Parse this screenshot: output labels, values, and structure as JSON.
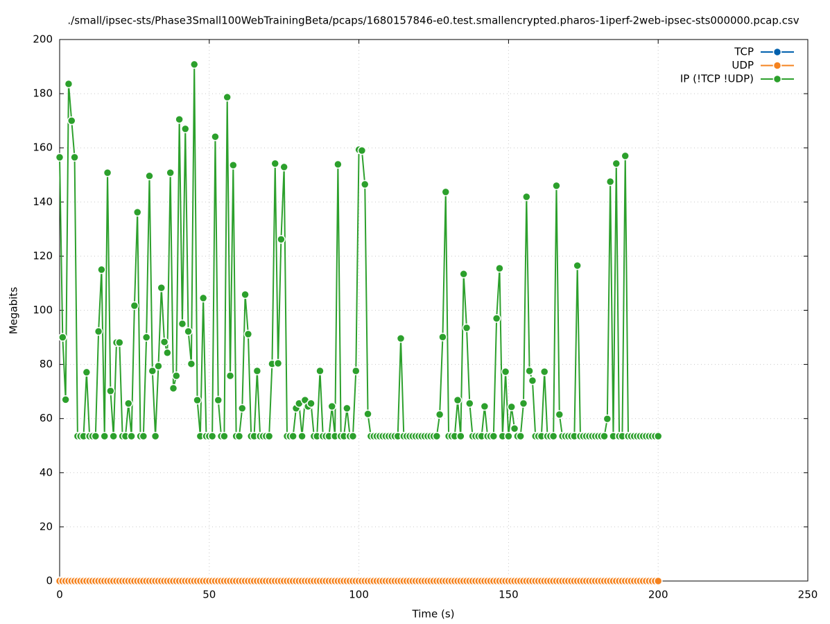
{
  "chart_data": {
    "type": "line",
    "title": "./small/ipsec-sts/Phase3Small100WebTrainingBeta/pcaps/1680157846-e0.test.smallencrypted.pharos-1iperf-2web-ipsec-sts000000.pcap.csv",
    "x_label": "Time (s)",
    "y_label": "Megabits",
    "xlim": [
      0,
      250
    ],
    "xticks": [
      0,
      50,
      100,
      150,
      200,
      250
    ],
    "ylim": [
      0,
      200
    ],
    "yticks": [
      0,
      20,
      40,
      60,
      80,
      100,
      120,
      140,
      160,
      180,
      200
    ],
    "grid": true,
    "legend": "top-right",
    "x": [
      0,
      1,
      2,
      3,
      4,
      5,
      6,
      7,
      8,
      9,
      10,
      11,
      12,
      13,
      14,
      15,
      16,
      17,
      18,
      19,
      20,
      21,
      22,
      23,
      24,
      25,
      26,
      27,
      28,
      29,
      30,
      31,
      32,
      33,
      34,
      35,
      36,
      37,
      38,
      39,
      40,
      41,
      42,
      43,
      44,
      45,
      46,
      47,
      48,
      49,
      50,
      51,
      52,
      53,
      54,
      55,
      56,
      57,
      58,
      59,
      60,
      61,
      62,
      63,
      64,
      65,
      66,
      67,
      68,
      69,
      70,
      71,
      72,
      73,
      74,
      75,
      76,
      77,
      78,
      79,
      80,
      81,
      82,
      83,
      84,
      85,
      86,
      87,
      88,
      89,
      90,
      91,
      92,
      93,
      94,
      95,
      96,
      97,
      98,
      99,
      100,
      101,
      102,
      103,
      104,
      105,
      106,
      107,
      108,
      109,
      110,
      111,
      112,
      113,
      114,
      115,
      116,
      117,
      118,
      119,
      120,
      121,
      122,
      123,
      124,
      125,
      126,
      127,
      128,
      129,
      130,
      131,
      132,
      133,
      134,
      135,
      136,
      137,
      138,
      139,
      140,
      141,
      142,
      143,
      144,
      145,
      146,
      147,
      148,
      149,
      150,
      151,
      152,
      153,
      154,
      155,
      156,
      157,
      158,
      159,
      160,
      161,
      162,
      163,
      164,
      165,
      166,
      167,
      168,
      169,
      170,
      171,
      172,
      173,
      174,
      175,
      176,
      177,
      178,
      179,
      180,
      181,
      182,
      183,
      184,
      185,
      186,
      187,
      188,
      189,
      190,
      191,
      192,
      193,
      194,
      195,
      196,
      197,
      198,
      199,
      200
    ],
    "series": [
      {
        "name": "TCP",
        "color": "#0060ad",
        "values": [
          0,
          0,
          0,
          0,
          0,
          0,
          0,
          0,
          0,
          0,
          0,
          0,
          0,
          0,
          0,
          0,
          0,
          0,
          0,
          0,
          0,
          0,
          0,
          0,
          0,
          0,
          0,
          0,
          0,
          0,
          0,
          0,
          0,
          0,
          0,
          0,
          0,
          0,
          0,
          0,
          0,
          0,
          0,
          0,
          0,
          0,
          0,
          0,
          0,
          0,
          0,
          0,
          0,
          0,
          0,
          0,
          0,
          0,
          0,
          0,
          0,
          0,
          0,
          0,
          0,
          0,
          0,
          0,
          0,
          0,
          0,
          0,
          0,
          0,
          0,
          0,
          0,
          0,
          0,
          0,
          0,
          0,
          0,
          0,
          0,
          0,
          0,
          0,
          0,
          0,
          0,
          0,
          0,
          0,
          0,
          0,
          0,
          0,
          0,
          0,
          0,
          0,
          0,
          0,
          0,
          0,
          0,
          0,
          0,
          0,
          0,
          0,
          0,
          0,
          0,
          0,
          0,
          0,
          0,
          0,
          0,
          0,
          0,
          0,
          0,
          0,
          0,
          0,
          0,
          0,
          0,
          0,
          0,
          0,
          0,
          0,
          0,
          0,
          0,
          0,
          0,
          0,
          0,
          0,
          0,
          0,
          0,
          0,
          0,
          0,
          0,
          0,
          0,
          0,
          0,
          0,
          0,
          0,
          0,
          0,
          0,
          0,
          0,
          0,
          0,
          0,
          0,
          0,
          0,
          0,
          0,
          0,
          0,
          0,
          0,
          0,
          0,
          0,
          0,
          0,
          0,
          0,
          0,
          0,
          0,
          0,
          0,
          0,
          0,
          0,
          0,
          0,
          0,
          0,
          0,
          0,
          0,
          0,
          0,
          0,
          0
        ]
      },
      {
        "name": "UDP",
        "color": "#f5831f",
        "values": [
          0,
          0,
          0,
          0,
          0,
          0,
          0,
          0,
          0,
          0,
          0,
          0,
          0,
          0,
          0,
          0,
          0,
          0,
          0,
          0,
          0,
          0,
          0,
          0,
          0,
          0,
          0,
          0,
          0,
          0,
          0,
          0,
          0,
          0,
          0,
          0,
          0,
          0,
          0,
          0,
          0,
          0,
          0,
          0,
          0,
          0,
          0,
          0,
          0,
          0,
          0,
          0,
          0,
          0,
          0,
          0,
          0,
          0,
          0,
          0,
          0,
          0,
          0,
          0,
          0,
          0,
          0,
          0,
          0,
          0,
          0,
          0,
          0,
          0,
          0,
          0,
          0,
          0,
          0,
          0,
          0,
          0,
          0,
          0,
          0,
          0,
          0,
          0,
          0,
          0,
          0,
          0,
          0,
          0,
          0,
          0,
          0,
          0,
          0,
          0,
          0,
          0,
          0,
          0,
          0,
          0,
          0,
          0,
          0,
          0,
          0,
          0,
          0,
          0,
          0,
          0,
          0,
          0,
          0,
          0,
          0,
          0,
          0,
          0,
          0,
          0,
          0,
          0,
          0,
          0,
          0,
          0,
          0,
          0,
          0,
          0,
          0,
          0,
          0,
          0,
          0,
          0,
          0,
          0,
          0,
          0,
          0,
          0,
          0,
          0,
          0,
          0,
          0,
          0,
          0,
          0,
          0,
          0,
          0,
          0,
          0,
          0,
          0,
          0,
          0,
          0,
          0,
          0,
          0,
          0,
          0,
          0,
          0,
          0,
          0,
          0,
          0,
          0,
          0,
          0,
          0,
          0,
          0,
          0,
          0,
          0,
          0,
          0,
          0,
          0,
          0,
          0,
          0,
          0,
          0,
          0,
          0,
          0,
          0,
          0,
          0
        ]
      },
      {
        "name": "IP (!TCP  !UDP)",
        "color": "#2ca02c",
        "values": [
          156.5,
          90,
          67,
          183.6,
          170,
          156.5,
          53.5,
          53.5,
          53.5,
          77.1,
          53.5,
          53.5,
          53.5,
          92.2,
          115,
          53.5,
          150.8,
          70.2,
          53.5,
          88.1,
          88.1,
          53.5,
          53.5,
          65.6,
          53.5,
          101.7,
          136.2,
          53.5,
          53.5,
          90,
          149.6,
          77.6,
          53.5,
          79.4,
          108.3,
          88.3,
          84.3,
          150.8,
          71.2,
          75.8,
          170.5,
          95,
          167,
          92.2,
          80.2,
          190.8,
          66.8,
          53.5,
          104.5,
          53.5,
          53.5,
          53.5,
          164.1,
          66.8,
          53.5,
          53.5,
          178.7,
          75.8,
          153.6,
          53.5,
          53.5,
          63.8,
          105.8,
          91.2,
          53.5,
          53.5,
          77.6,
          53.5,
          53.5,
          53.5,
          53.5,
          80.2,
          154.2,
          80.4,
          126.2,
          152.9,
          53.5,
          53.5,
          53.5,
          63.8,
          65.6,
          53.5,
          66.8,
          64.5,
          65.6,
          53.5,
          53.5,
          77.6,
          53.5,
          53.5,
          53.5,
          64.5,
          53.5,
          153.9,
          53.5,
          53.5,
          63.8,
          53.5,
          53.5,
          77.6,
          159.3,
          159,
          146.5,
          61.7,
          53.5,
          53.5,
          53.5,
          53.5,
          53.5,
          53.5,
          53.5,
          53.5,
          53.5,
          53.5,
          89.6,
          53.5,
          53.5,
          53.5,
          53.5,
          53.5,
          53.5,
          53.5,
          53.5,
          53.5,
          53.5,
          53.5,
          53.5,
          61.5,
          90.1,
          143.7,
          53.5,
          53.5,
          53.5,
          66.8,
          53.5,
          113.4,
          93.5,
          65.6,
          53.5,
          53.5,
          53.5,
          53.5,
          64.5,
          53.5,
          53.5,
          53.5,
          97,
          115.5,
          53.5,
          77.3,
          53.5,
          64.3,
          56.3,
          53.5,
          53.5,
          65.6,
          141.9,
          77.6,
          74,
          53.5,
          53.5,
          53.5,
          77.3,
          53.5,
          53.5,
          53.5,
          146,
          61.5,
          53.5,
          53.5,
          53.5,
          53.5,
          53.5,
          116.5,
          53.5,
          53.5,
          53.5,
          53.5,
          53.5,
          53.5,
          53.5,
          53.5,
          53.5,
          59.9,
          147.5,
          53.5,
          154.2,
          53.5,
          53.5,
          157,
          53.5,
          53.5,
          53.5,
          53.5,
          53.5,
          53.5,
          53.5,
          53.5,
          53.5,
          53.5,
          53.5
        ]
      }
    ]
  }
}
